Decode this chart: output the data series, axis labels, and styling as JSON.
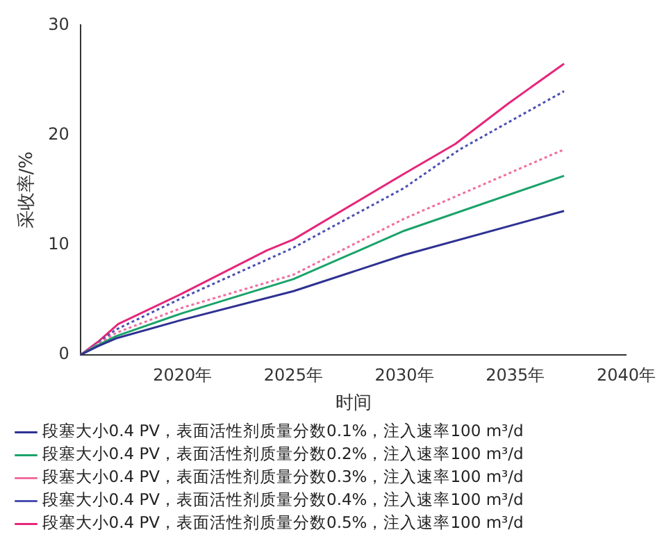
{
  "chart_data": {
    "type": "line",
    "xlabel": "时间",
    "ylabel": "采收率/%",
    "xlim": [
      2015.4,
      2040
    ],
    "xticks": [
      {
        "value": 2020,
        "label": "2020年"
      },
      {
        "value": 2025,
        "label": "2025年"
      },
      {
        "value": 2030,
        "label": "2030年"
      },
      {
        "value": 2035,
        "label": "2035年"
      },
      {
        "value": 2040,
        "label": "2040年"
      }
    ],
    "ylim": [
      0,
      30
    ],
    "yticks": [
      0,
      10,
      20,
      30
    ],
    "grid": false,
    "legend": "bottom",
    "marker": "none",
    "series": [
      {
        "name": "段塞大小0.4 PV，表面活性剂质量分数0.1%，注入速率100 m³/d",
        "color": "#2e3192",
        "line_style": "solid",
        "x": [
          2015.4,
          2016.2,
          2017,
          2020,
          2025,
          2030,
          2037.2
        ],
        "values": [
          0,
          0.8,
          1.5,
          3.2,
          5.8,
          9.1,
          13.1
        ]
      },
      {
        "name": "段塞大小0.4 PV，表面活性剂质量分数0.2%，注入速率100 m³/d",
        "color": "#1aa36a",
        "line_style": "solid",
        "x": [
          2015.4,
          2016.2,
          2017,
          2020,
          2025,
          2030,
          2037.2
        ],
        "values": [
          0,
          0.9,
          1.7,
          3.8,
          6.9,
          11.3,
          16.3
        ]
      },
      {
        "name": "段塞大小0.4 PV，表面活性剂质量分数0.3%，注入速率100 m³/d",
        "color": "#f06ea0",
        "line_style": "dotted",
        "x": [
          2015.4,
          2016.2,
          2017,
          2020,
          2025,
          2030,
          2037.2
        ],
        "values": [
          0,
          1,
          2,
          4.3,
          7.3,
          12.4,
          18.7
        ]
      },
      {
        "name": "段塞大小0.4 PV，表面活性剂质量分数0.4%，注入速率100 m³/d",
        "color": "#4b4fb0",
        "line_style": "dotted",
        "x": [
          2015.4,
          2016.2,
          2017,
          2020,
          2025,
          2030,
          2032.5,
          2037.2
        ],
        "values": [
          0,
          1.1,
          2.3,
          5.2,
          9.75,
          15.2,
          18.7,
          24
        ]
      },
      {
        "name": "段塞大小0.4 PV，表面活性剂质量分数0.5%，注入速率100 m³/d",
        "color": "#e6267a",
        "line_style": "solid",
        "x": [
          2015.4,
          2016.2,
          2017.1,
          2020,
          2023.8,
          2025,
          2030,
          2032.3,
          2034.7,
          2037.2
        ],
        "values": [
          0,
          1.2,
          2.8,
          5.6,
          9.5,
          10.5,
          16.5,
          19.2,
          22.9,
          26.5
        ]
      }
    ]
  }
}
